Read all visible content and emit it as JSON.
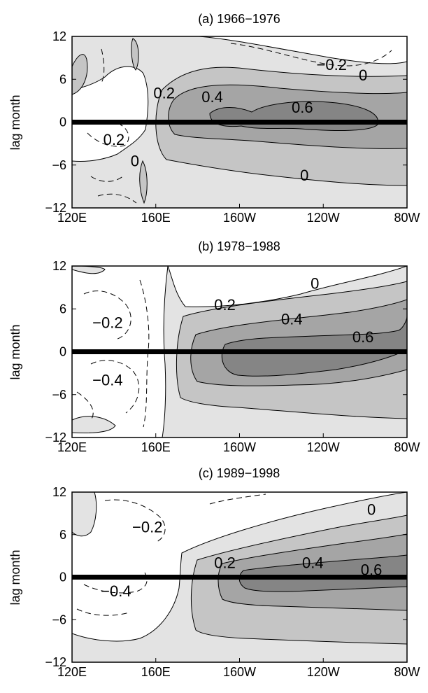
{
  "chart_data": [
    {
      "type": "heatmap",
      "title": "(a) 1966−1976",
      "ylabel": "lag month",
      "xlim": [
        120,
        280
      ],
      "ylim": [
        -12,
        12
      ],
      "xticks": [
        "120E",
        "160E",
        "160W",
        "120W",
        "80W"
      ],
      "yticks": [
        "−12",
        "−6",
        "0",
        "6",
        "12"
      ],
      "fill_levels": [
        0,
        0.2,
        0.4,
        0.6
      ],
      "zero_lag_line": 0,
      "contour_labels": [
        {
          "text": "−0.2",
          "x": 244,
          "y": 8
        },
        {
          "text": "0",
          "x": 259,
          "y": 6.5
        },
        {
          "text": "0.2",
          "x": 164,
          "y": 4
        },
        {
          "text": "0.4",
          "x": 187,
          "y": 3.5
        },
        {
          "text": "0.6",
          "x": 230,
          "y": 2
        },
        {
          "text": "0.2",
          "x": 140,
          "y": -2.5
        },
        {
          "text": "0",
          "x": 150,
          "y": -5.5
        },
        {
          "text": "0",
          "x": 231,
          "y": -7.5
        }
      ]
    },
    {
      "type": "heatmap",
      "title": "(b) 1978−1988",
      "ylabel": "lag month",
      "xlim": [
        120,
        280
      ],
      "ylim": [
        -12,
        12
      ],
      "xticks": [
        "120E",
        "160E",
        "160W",
        "120W",
        "80W"
      ],
      "yticks": [
        "−12",
        "−6",
        "0",
        "6",
        "12"
      ],
      "fill_levels": [
        0,
        0.2,
        0.4,
        0.6
      ],
      "zero_lag_line": 0,
      "contour_labels": [
        {
          "text": "−0.2",
          "x": 137,
          "y": 4
        },
        {
          "text": "0.2",
          "x": 193,
          "y": 6.5
        },
        {
          "text": "0",
          "x": 236,
          "y": 9.5
        },
        {
          "text": "0.4",
          "x": 225,
          "y": 4.5
        },
        {
          "text": "0.6",
          "x": 259,
          "y": 2
        },
        {
          "text": "−0.4",
          "x": 137,
          "y": -4
        }
      ]
    },
    {
      "type": "heatmap",
      "title": "(c) 1989−1998",
      "ylabel": "lag month",
      "xlim": [
        120,
        280
      ],
      "ylim": [
        -12,
        12
      ],
      "xticks": [
        "120E",
        "160E",
        "160W",
        "120W",
        "80W"
      ],
      "yticks": [
        "−12",
        "−6",
        "0",
        "6",
        "12"
      ],
      "fill_levels": [
        0,
        0.2,
        0.4,
        0.6
      ],
      "zero_lag_line": 0,
      "contour_labels": [
        {
          "text": "−0.2",
          "x": 156,
          "y": 7
        },
        {
          "text": "0.2",
          "x": 193,
          "y": 2
        },
        {
          "text": "0.4",
          "x": 235,
          "y": 2
        },
        {
          "text": "0.6",
          "x": 263,
          "y": 1
        },
        {
          "text": "0",
          "x": 263,
          "y": 9.5
        },
        {
          "text": "−0.4",
          "x": 141,
          "y": -2
        }
      ]
    }
  ],
  "colors": {
    "level_0": "#e3e3e3",
    "level_1": "#c5c5c5",
    "level_2": "#a5a5a5",
    "level_3": "#858585",
    "frame": "#000000",
    "contour": "#000000"
  }
}
